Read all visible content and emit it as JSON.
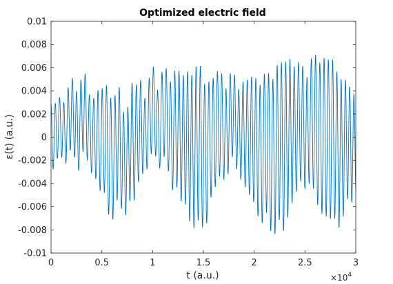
{
  "chart_data": {
    "type": "line",
    "title": "Optimized electric field",
    "xlabel": "t (a.u.)",
    "ylabel": "ε(t) (a.u.)",
    "x_exponent_label": "×10",
    "x_exponent_power": "4",
    "xlim": [
      0,
      30000
    ],
    "ylim": [
      -0.01,
      0.01
    ],
    "grid": false,
    "legend": "none",
    "line_color": "#0072BD",
    "x_ticks": [
      0,
      5000,
      10000,
      15000,
      20000,
      25000,
      30000
    ],
    "x_tick_labels": [
      "0",
      "0.5",
      "1",
      "1.5",
      "2",
      "2.5",
      "3"
    ],
    "y_ticks": [
      -0.01,
      -0.008,
      -0.006,
      -0.004,
      -0.002,
      0,
      0.002,
      0.004,
      0.006,
      0.008,
      0.01
    ],
    "y_tick_labels": [
      "-0.01",
      "-0.008",
      "-0.006",
      "-0.004",
      "-0.002",
      "0",
      "0.002",
      "0.004",
      "0.006",
      "0.008",
      "0.01"
    ],
    "series": [
      {
        "carrier_period": 420,
        "envelope": {
          "x": [
            0,
            800,
            1500,
            2500,
            3200,
            4000,
            5000,
            5800,
            6500,
            7300,
            8200,
            8700,
            9300,
            9800,
            10500,
            11500,
            12300,
            13000,
            13700,
            14400,
            15100,
            15800,
            16500,
            17300,
            18000,
            18700,
            19400,
            20100,
            20800,
            21600,
            22300,
            23100,
            23900,
            24600,
            25300,
            26100,
            26900,
            27600,
            28400,
            29200,
            30000
          ],
          "y": [
            0.0035,
            0.003,
            0.0035,
            0.004,
            0.0042,
            0.0038,
            0.0055,
            0.0065,
            0.006,
            0.0053,
            0.006,
            0.0052,
            0.004,
            0.0045,
            0.0042,
            0.005,
            0.0062,
            0.0068,
            0.0078,
            0.0085,
            0.0077,
            0.0062,
            0.0056,
            0.005,
            0.0044,
            0.005,
            0.006,
            0.0068,
            0.0074,
            0.008,
            0.0086,
            0.0087,
            0.007,
            0.0062,
            0.006,
            0.0075,
            0.0083,
            0.0083,
            0.0079,
            0.0062,
            0.0055
          ]
        },
        "slow_beat": {
          "x": [
            0,
            1500,
            3000,
            4500,
            6000,
            7500,
            9000,
            10500,
            12000,
            13500,
            15000,
            16500,
            18000,
            19500,
            21000,
            22500,
            24000,
            25500,
            27000,
            28500,
            30000
          ],
          "y": [
            0.0,
            0.0018,
            0.0024,
            0.0,
            -0.002,
            -0.0024,
            0.001,
            0.003,
            0.0012,
            -0.001,
            -0.0018,
            0.0012,
            0.002,
            0.0,
            -0.0018,
            -0.0016,
            0.0012,
            0.0016,
            0.0,
            -0.0014,
            -0.0008
          ]
        }
      }
    ]
  }
}
